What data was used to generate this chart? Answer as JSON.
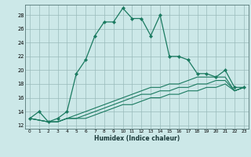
{
  "title": "",
  "xlabel": "Humidex (Indice chaleur)",
  "bg_color": "#cce8e8",
  "line_color": "#1a7a60",
  "grid_color": "#99bbbb",
  "xlim": [
    -0.5,
    23.5
  ],
  "ylim": [
    11.5,
    29.5
  ],
  "xticks": [
    0,
    1,
    2,
    3,
    4,
    5,
    6,
    7,
    8,
    9,
    10,
    11,
    12,
    13,
    14,
    15,
    16,
    17,
    18,
    19,
    20,
    21,
    22,
    23
  ],
  "yticks": [
    12,
    14,
    16,
    18,
    20,
    22,
    24,
    26,
    28
  ],
  "main_x": [
    0,
    1,
    2,
    3,
    4,
    5,
    6,
    7,
    8,
    9,
    10,
    11,
    12,
    13,
    14,
    15,
    16,
    17,
    18,
    19,
    20,
    21,
    22,
    23
  ],
  "main_y": [
    13,
    14,
    12.5,
    13,
    14,
    19.5,
    21.5,
    25,
    27,
    27,
    29,
    27.5,
    27.5,
    25,
    28,
    22,
    22,
    21.5,
    19.5,
    19.5,
    19,
    20,
    17.5,
    17.5
  ],
  "line2_x": [
    0,
    2,
    3,
    4,
    5,
    6,
    7,
    8,
    9,
    10,
    11,
    12,
    13,
    14,
    15,
    16,
    17,
    18,
    19,
    20,
    21,
    22,
    23
  ],
  "line2_y": [
    13,
    12.5,
    12.5,
    13,
    13.5,
    14,
    14.5,
    15,
    15.5,
    16,
    16.5,
    17,
    17.5,
    17.5,
    18,
    18,
    18.5,
    19,
    19,
    19,
    19,
    17,
    17.5
  ],
  "line3_x": [
    0,
    2,
    3,
    4,
    5,
    6,
    7,
    8,
    9,
    10,
    11,
    12,
    13,
    14,
    15,
    16,
    17,
    18,
    19,
    20,
    21,
    22,
    23
  ],
  "line3_y": [
    13,
    12.5,
    12.5,
    13,
    13,
    13.5,
    14,
    14.5,
    15,
    15.5,
    16,
    16.5,
    16.5,
    17,
    17,
    17.5,
    17.5,
    18,
    18,
    18.5,
    18.5,
    17,
    17.5
  ],
  "line4_x": [
    0,
    2,
    3,
    4,
    5,
    6,
    7,
    8,
    9,
    10,
    11,
    12,
    13,
    14,
    15,
    16,
    17,
    18,
    19,
    20,
    21,
    22,
    23
  ],
  "line4_y": [
    13,
    12.5,
    12.5,
    13,
    13,
    13,
    13.5,
    14,
    14.5,
    15,
    15,
    15.5,
    16,
    16,
    16.5,
    16.5,
    17,
    17,
    17.5,
    17.5,
    18,
    17,
    17.5
  ]
}
